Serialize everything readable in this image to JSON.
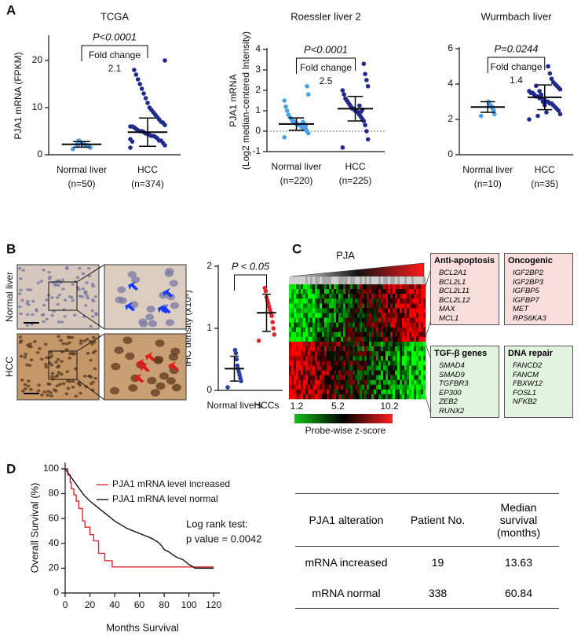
{
  "panels": [
    "A",
    "B",
    "C",
    "D"
  ],
  "chart_data": [
    {
      "type": "dot",
      "title": "TCGA",
      "ylabel": "PJA1 mRNA  (FPKM)",
      "categories": [
        "Normal liver",
        "HCC"
      ],
      "sublabels": [
        "(n=50)",
        "(n=374)"
      ],
      "ylim": [
        0,
        25
      ],
      "yticks": [
        0,
        10,
        20
      ],
      "p_text": "P<0.0001",
      "fold_label": "Fold change",
      "fold_value": 2.1,
      "groups": [
        {
          "color": "#4a9fe6",
          "mean": 2.2,
          "sd": 0.6,
          "values": [
            1.2,
            1.5,
            1.7,
            1.8,
            2,
            2,
            2.1,
            2.2,
            2.3,
            2.4,
            2.5,
            2.6,
            2.8,
            3,
            1.9,
            2.2
          ]
        },
        {
          "color": "#1f2a8c",
          "mean": 4.8,
          "sd": 3,
          "values": [
            1.5,
            2,
            2.5,
            3,
            3,
            3.5,
            3.8,
            4,
            4,
            4.2,
            4.5,
            4.5,
            4.8,
            5,
            5,
            5.2,
            5.5,
            5.8,
            6,
            6,
            6.3,
            6.8,
            7,
            7.5,
            8,
            8.5,
            9,
            9.5,
            10,
            11,
            12,
            13,
            14,
            15,
            16,
            17,
            18,
            2.8,
            3.3,
            20
          ]
        }
      ]
    },
    {
      "type": "dot",
      "title": "Roessler liver 2",
      "ylabel": [
        "PJA1 mRNA",
        "(Log2 median-centered  Intensity)"
      ],
      "categories": [
        "Normal liver",
        "HCC"
      ],
      "sublabels": [
        "(n=220)",
        "(n=225)"
      ],
      "ylim": [
        -1,
        4
      ],
      "yticks": [
        -1,
        0,
        1,
        2,
        3,
        4
      ],
      "refline": 0,
      "p_text": "P<0.0001",
      "fold_label": "Fold change",
      "fold_value": 2.5,
      "groups": [
        {
          "color": "#4a9fe6",
          "mean": 0.35,
          "sd": 0.3,
          "values": [
            -0.3,
            -0.1,
            0,
            0.1,
            0.1,
            0.2,
            0.2,
            0.3,
            0.3,
            0.3,
            0.4,
            0.4,
            0.5,
            0.5,
            0.6,
            0.7,
            0.8,
            1,
            1.2,
            1.5,
            1.8,
            2.2,
            0.25,
            0.35,
            0.45
          ]
        },
        {
          "color": "#1f2a8c",
          "mean": 1.1,
          "sd": 0.6,
          "values": [
            -0.8,
            -0.4,
            0,
            0.3,
            0.5,
            0.6,
            0.7,
            0.8,
            0.9,
            1,
            1,
            1.1,
            1.1,
            1.2,
            1.3,
            1.4,
            1.5,
            1.6,
            1.8,
            2,
            2.2,
            2.5,
            2.8,
            3.3,
            1.05,
            0.95,
            1.25
          ]
        }
      ]
    },
    {
      "type": "dot",
      "title": "Wurmbach liver",
      "categories": [
        "Normal liver",
        "HCC"
      ],
      "sublabels": [
        "(n=10)",
        "(n=35)"
      ],
      "ylim": [
        0,
        6
      ],
      "yticks": [
        0,
        2,
        4,
        6
      ],
      "p_text": "P=0.0244",
      "fold_label": "Fold change",
      "fold_value": 1.4,
      "groups": [
        {
          "color": "#4a9fe6",
          "mean": 2.7,
          "sd": 0.3,
          "values": [
            2.2,
            2.3,
            2.5,
            2.6,
            2.7,
            2.7,
            2.8,
            2.8,
            2.9,
            3
          ]
        },
        {
          "color": "#1f2a8c",
          "mean": 3.25,
          "sd": 0.7,
          "values": [
            2,
            2.3,
            2.5,
            2.6,
            2.7,
            2.8,
            2.9,
            2.9,
            3,
            3,
            3.1,
            3.1,
            3.2,
            3.2,
            3.3,
            3.3,
            3.4,
            3.5,
            3.5,
            3.6,
            3.7,
            3.8,
            3.9,
            4,
            4.1,
            4.3,
            4.6,
            5,
            2.4,
            2.8,
            3,
            3.4,
            3.6,
            2.2,
            3.9
          ]
        }
      ]
    },
    {
      "type": "dot",
      "ylabel": "IHC density (x10⁶)",
      "categories": [
        "Normal livers",
        "HCCs"
      ],
      "ylim": [
        0,
        2
      ],
      "yticks": [
        0,
        1,
        2
      ],
      "p_text": "P < 0.05",
      "groups": [
        {
          "color": "#2a3ea0",
          "mean": 0.35,
          "sd": 0.2,
          "values": [
            0.05,
            0.15,
            0.2,
            0.25,
            0.3,
            0.35,
            0.4,
            0.5,
            0.6,
            0.65
          ]
        },
        {
          "color": "#e0262b",
          "mean": 1.25,
          "sd": 0.3,
          "values": [
            0.8,
            0.9,
            1,
            1.1,
            1.2,
            1.25,
            1.3,
            1.35,
            1.4,
            1.45,
            1.5,
            1.6,
            1.65
          ]
        }
      ]
    },
    {
      "type": "survival",
      "xlabel": "Months Survival",
      "ylabel": "Overall  Survival  (%)",
      "xlim": [
        0,
        125
      ],
      "xticks": [
        0,
        20,
        40,
        60,
        80,
        100,
        120
      ],
      "ylim": [
        0,
        105
      ],
      "yticks": [
        0,
        20,
        40,
        60,
        80,
        100
      ],
      "annotation": [
        "Log rank test:",
        "p value  = 0.0042"
      ],
      "series": [
        {
          "name": "PJA1 mRNA level increased",
          "color": "#e0262b",
          "x": [
            0,
            2,
            2,
            4,
            4,
            5,
            5,
            7,
            7,
            9,
            9,
            11,
            11,
            14,
            14,
            16,
            16,
            20,
            20,
            23,
            23,
            27,
            27,
            32,
            32,
            38,
            38,
            120
          ],
          "values": [
            100,
            100,
            95,
            95,
            89,
            89,
            84,
            84,
            79,
            79,
            74,
            74,
            68,
            68,
            58,
            58,
            53,
            53,
            47,
            47,
            42,
            42,
            32,
            32,
            26,
            26,
            21,
            21
          ]
        },
        {
          "name": "PJA1 mRNA level normal",
          "color": "#111111",
          "x": [
            0,
            5,
            10,
            15,
            20,
            25,
            30,
            35,
            40,
            45,
            50,
            55,
            60,
            65,
            70,
            75,
            78,
            80,
            84,
            88,
            92,
            95,
            100,
            105,
            108,
            110,
            120
          ],
          "values": [
            100,
            93,
            86,
            79,
            74,
            70,
            66,
            62,
            58,
            55,
            52,
            50,
            48,
            46,
            44,
            41,
            38,
            35,
            33,
            30,
            28,
            27,
            23,
            20,
            20,
            20,
            20
          ]
        }
      ]
    }
  ],
  "ihc": {
    "rows": [
      "Normal liver",
      "HCC"
    ]
  },
  "heatmap": {
    "label": "PJA",
    "scale_ticks": [
      1.2,
      5.2,
      10.2
    ],
    "scale_label": "Probe-wise z-score"
  },
  "gene_sets": [
    {
      "title": "Anti-apoptosis",
      "genes": [
        "BCL2A1",
        "BCL2L1",
        "BCL2L11",
        "BCL2L12",
        "MAX",
        "MCL1"
      ]
    },
    {
      "title": "Oncogenic",
      "genes": [
        "IGF2BP2",
        "IGF2BP3",
        "IGFBP5",
        "IGFBP7",
        "MET",
        "RPS6KA3"
      ]
    },
    {
      "title": "TGF-β genes",
      "genes": [
        "SMAD4",
        "SMAD9",
        "TGFBR3",
        "EP300",
        "ZEB2",
        "RUNX2"
      ]
    },
    {
      "title": "DNA repair",
      "genes": [
        "FANCD2",
        "FANCM",
        "FBXW12",
        "FOSL1",
        "NFKB2"
      ]
    }
  ],
  "table": {
    "header": [
      "PJA1 alteration",
      "Patient No.",
      "Median survival (months)"
    ],
    "rows": [
      [
        "mRNA increased",
        19,
        13.63
      ],
      [
        "mRNA normal",
        338,
        60.84
      ]
    ]
  }
}
